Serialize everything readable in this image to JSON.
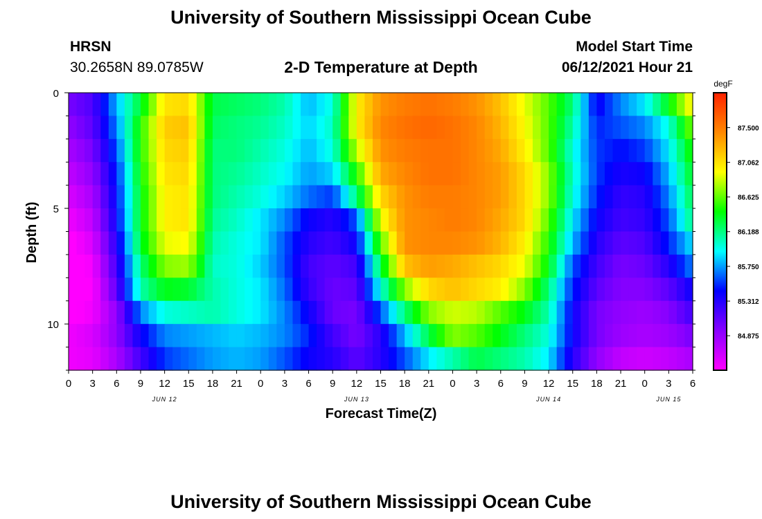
{
  "header": {
    "title": "University of Southern Mississippi Ocean Cube",
    "station_name": "HRSN",
    "station_coords": "30.2658N  89.0785W",
    "plot_title": "2-D Temperature at Depth",
    "model_start_label": "Model Start Time",
    "model_start_value": "06/12/2021 Hour 21"
  },
  "footer": {
    "title": "University of Southern Mississippi Ocean Cube"
  },
  "chart_data": {
    "type": "heatmap",
    "title": "2-D Temperature at Depth",
    "xlabel": "Forecast Time(Z)",
    "ylabel": "Depth (ft)",
    "x_hours_range": [
      0,
      78
    ],
    "y_range": [
      0,
      12
    ],
    "x_tick_labels": [
      "0",
      "3",
      "6",
      "9",
      "12",
      "15",
      "18",
      "21",
      "0",
      "3",
      "6",
      "9",
      "12",
      "15",
      "18",
      "21",
      "0",
      "3",
      "6",
      "9",
      "12",
      "15",
      "18",
      "21",
      "0",
      "3",
      "6"
    ],
    "y_tick_labels": [
      "0",
      "5",
      "10"
    ],
    "y_tick_values": [
      0,
      5,
      10
    ],
    "date_labels": [
      {
        "text": "JUN 12",
        "hour": 12
      },
      {
        "text": "JUN 13",
        "hour": 36
      },
      {
        "text": "JUN 14",
        "hour": 60
      },
      {
        "text": "JUN 15",
        "hour": 75
      }
    ],
    "colorbar": {
      "unit": "degF",
      "min": 84.44,
      "max": 87.94,
      "tick_labels": [
        "87.500",
        "87.062",
        "86.625",
        "86.188",
        "85.750",
        "85.312",
        "84.875"
      ],
      "tick_values": [
        87.5,
        87.062,
        86.625,
        86.188,
        85.75,
        85.312,
        84.875
      ],
      "colors": [
        "#ff00ff",
        "#8800ff",
        "#0000ff",
        "#00ffff",
        "#00ff00",
        "#ffff00",
        "#ff8800",
        "#ff2200"
      ]
    },
    "grid": {
      "depths": [
        0.5,
        1.5,
        2.5,
        3.5,
        4.5,
        5.5,
        6.5,
        7.5,
        8.5,
        9.5,
        10.5,
        11.5
      ],
      "hours": [
        0,
        3,
        6,
        9,
        12,
        15,
        18,
        21,
        24,
        27,
        30,
        33,
        36,
        39,
        42,
        45,
        48,
        51,
        54,
        57,
        60,
        63,
        66,
        69,
        72,
        75,
        78
      ],
      "values": [
        [
          85.0,
          85.15,
          85.8,
          86.35,
          87.05,
          87.1,
          86.3,
          86.25,
          86.2,
          86.1,
          85.8,
          86.0,
          87.0,
          87.4,
          87.5,
          87.55,
          87.5,
          87.4,
          87.2,
          86.9,
          86.6,
          86.2,
          85.4,
          85.7,
          85.9,
          86.4,
          87.0
        ],
        [
          84.9,
          85.1,
          85.7,
          86.5,
          87.15,
          87.2,
          86.25,
          86.2,
          86.15,
          86.05,
          85.85,
          86.05,
          87.0,
          87.45,
          87.55,
          87.6,
          87.55,
          87.45,
          87.25,
          86.95,
          86.6,
          86.1,
          85.5,
          85.6,
          85.7,
          86.0,
          86.7
        ],
        [
          84.8,
          85.0,
          85.6,
          86.5,
          87.1,
          87.15,
          86.2,
          86.2,
          86.1,
          86.0,
          85.8,
          86.0,
          86.8,
          87.4,
          87.5,
          87.55,
          87.55,
          87.45,
          87.3,
          87.0,
          86.6,
          86.0,
          85.55,
          85.45,
          85.55,
          85.9,
          86.5
        ],
        [
          84.7,
          84.9,
          85.5,
          86.45,
          87.05,
          87.1,
          86.2,
          86.15,
          86.05,
          85.95,
          85.75,
          85.85,
          86.5,
          87.3,
          87.45,
          87.55,
          87.55,
          87.45,
          87.35,
          87.1,
          86.7,
          86.05,
          85.55,
          85.35,
          85.4,
          85.8,
          86.4
        ],
        [
          84.6,
          84.8,
          85.45,
          86.4,
          87.0,
          87.05,
          86.2,
          86.1,
          86.0,
          85.85,
          85.65,
          85.55,
          86.2,
          87.1,
          87.4,
          87.5,
          87.5,
          87.45,
          87.35,
          87.1,
          86.7,
          86.0,
          85.5,
          85.25,
          85.3,
          85.7,
          86.3
        ],
        [
          84.5,
          84.7,
          85.4,
          86.4,
          87.0,
          87.05,
          86.15,
          86.05,
          85.9,
          85.7,
          85.4,
          85.3,
          85.6,
          86.9,
          87.4,
          87.45,
          87.5,
          87.45,
          87.3,
          87.1,
          86.6,
          85.9,
          85.4,
          85.2,
          85.25,
          85.6,
          86.2
        ],
        [
          84.4,
          84.6,
          85.3,
          86.35,
          86.9,
          86.95,
          86.1,
          86.0,
          85.9,
          85.6,
          85.3,
          85.2,
          85.4,
          86.6,
          87.4,
          87.45,
          87.45,
          87.4,
          87.25,
          87.0,
          86.5,
          85.8,
          85.3,
          85.1,
          85.15,
          85.5,
          85.9
        ],
        [
          84.3,
          84.5,
          85.2,
          86.2,
          86.7,
          86.75,
          86.05,
          86.0,
          85.85,
          85.6,
          85.2,
          85.1,
          85.2,
          86.3,
          87.2,
          87.35,
          87.3,
          87.2,
          87.1,
          86.9,
          86.4,
          85.6,
          85.2,
          85.0,
          85.05,
          85.3,
          85.7
        ],
        [
          84.3,
          84.45,
          85.1,
          86.1,
          86.4,
          86.35,
          86.1,
          86.0,
          85.9,
          85.65,
          85.25,
          85.05,
          85.1,
          86.0,
          86.7,
          87.1,
          87.2,
          87.1,
          87.0,
          86.7,
          86.2,
          85.5,
          85.1,
          84.95,
          84.95,
          85.1,
          85.4
        ],
        [
          84.4,
          84.5,
          84.9,
          85.7,
          86.0,
          86.05,
          86.1,
          86.0,
          85.9,
          85.7,
          85.4,
          85.05,
          85.0,
          85.6,
          86.2,
          86.7,
          86.85,
          86.8,
          86.6,
          86.4,
          86.1,
          85.4,
          85.0,
          84.9,
          84.85,
          84.95,
          85.2
        ],
        [
          84.5,
          84.6,
          84.9,
          85.4,
          85.7,
          85.75,
          85.8,
          85.85,
          85.8,
          85.7,
          85.5,
          85.2,
          85.0,
          85.3,
          85.8,
          86.3,
          86.7,
          86.6,
          86.4,
          86.2,
          86.0,
          85.4,
          85.0,
          84.85,
          84.8,
          84.85,
          85.0
        ],
        [
          84.5,
          84.55,
          84.8,
          85.2,
          85.55,
          85.65,
          85.75,
          85.8,
          85.75,
          85.6,
          85.4,
          85.3,
          85.1,
          85.3,
          85.6,
          85.9,
          86.1,
          86.3,
          86.2,
          86.1,
          85.9,
          85.3,
          84.9,
          84.7,
          84.65,
          84.7,
          84.8
        ]
      ]
    }
  }
}
